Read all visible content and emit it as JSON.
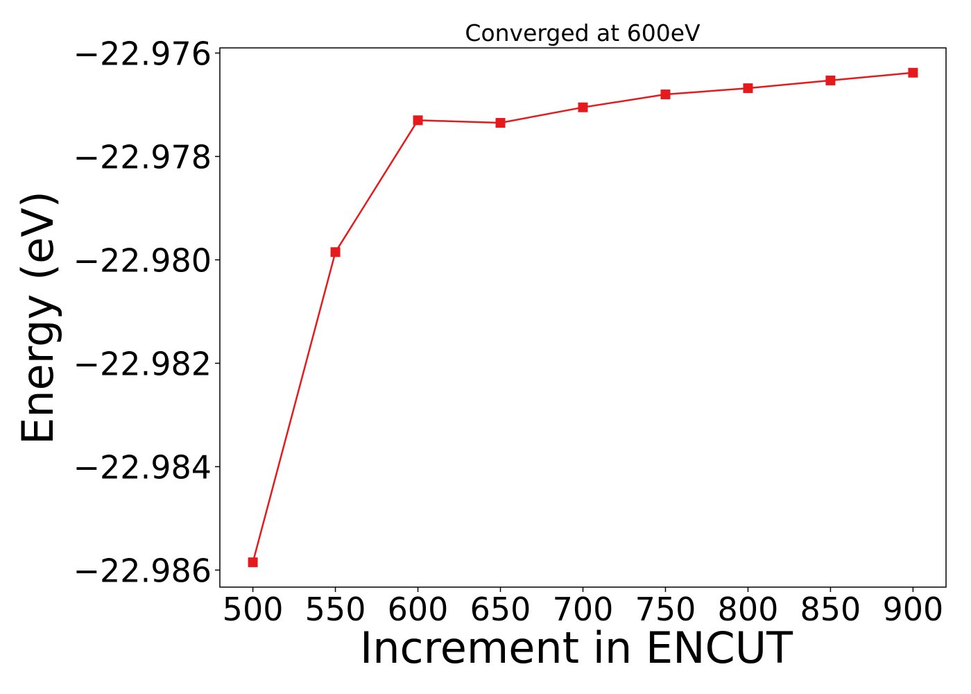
{
  "chart_data": {
    "type": "line",
    "title": "Converged at 600eV",
    "xlabel": "Increment in ENCUT",
    "ylabel": "Energy (eV)",
    "x": [
      500,
      550,
      600,
      650,
      700,
      750,
      800,
      850,
      900
    ],
    "series": [
      {
        "values": [
          -22.98585,
          -22.97985,
          -22.9773,
          -22.97735,
          -22.97705,
          -22.9768,
          -22.97668,
          -22.97653,
          -22.97638
        ],
        "color": "#e41a1c",
        "marker": "square"
      }
    ],
    "xticks": [
      500,
      550,
      600,
      650,
      700,
      750,
      800,
      850,
      900
    ],
    "xtick_labels": [
      "500",
      "550",
      "600",
      "650",
      "700",
      "750",
      "800",
      "850",
      "900"
    ],
    "yticks": [
      -22.976,
      -22.978,
      -22.98,
      -22.982,
      -22.984,
      -22.986
    ],
    "ytick_labels": [
      "−22.976",
      "−22.978",
      "−22.980",
      "−22.982",
      "−22.984",
      "−22.986"
    ],
    "xlim": [
      480,
      920
    ],
    "ylim": [
      -22.98633,
      -22.9759
    ],
    "grid": false,
    "legend": "none"
  }
}
